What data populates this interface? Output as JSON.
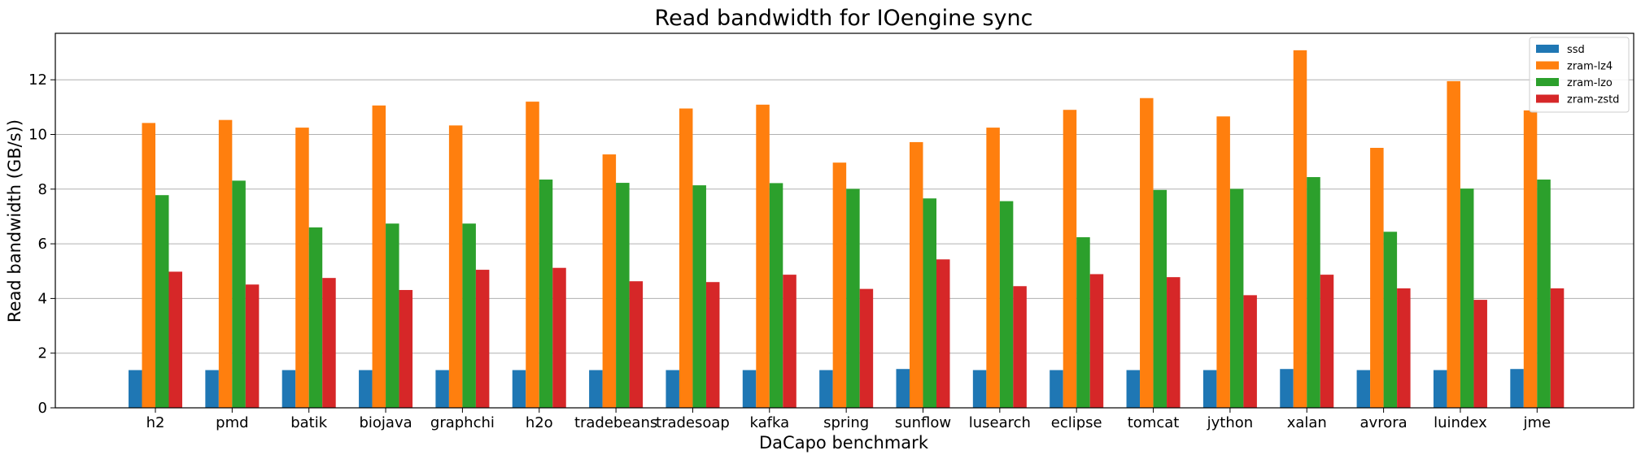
{
  "chart_data": {
    "type": "bar",
    "title": "Read bandwidth for IOengine sync",
    "xlabel": "DaCapo benchmark",
    "ylabel": "Read bandwidth (GB/s))",
    "ylim": [
      0,
      13.7
    ],
    "yticks": [
      0,
      2,
      4,
      6,
      8,
      10,
      12
    ],
    "grid": "horizontal",
    "legend_position": "top-right",
    "categories": [
      "h2",
      "pmd",
      "batik",
      "biojava",
      "graphchi",
      "h2o",
      "tradebeans",
      "tradesoap",
      "kafka",
      "spring",
      "sunflow",
      "lusearch",
      "eclipse",
      "tomcat",
      "jython",
      "xalan",
      "avrora",
      "luindex",
      "jme"
    ],
    "series": [
      {
        "name": "ssd",
        "color": "#1f77b4",
        "values": [
          1.38,
          1.38,
          1.38,
          1.38,
          1.38,
          1.38,
          1.38,
          1.38,
          1.38,
          1.38,
          1.42,
          1.38,
          1.38,
          1.38,
          1.38,
          1.42,
          1.38,
          1.38,
          1.42
        ]
      },
      {
        "name": "zram-lz4",
        "color": "#ff7f0e",
        "values": [
          10.42,
          10.53,
          10.25,
          11.06,
          10.33,
          11.2,
          9.27,
          10.95,
          11.09,
          8.97,
          9.72,
          10.25,
          10.9,
          11.33,
          10.66,
          13.08,
          9.51,
          11.95,
          10.88
        ]
      },
      {
        "name": "zram-lzo",
        "color": "#2ca02c",
        "values": [
          7.78,
          8.31,
          6.6,
          6.74,
          6.74,
          8.35,
          8.23,
          8.14,
          8.22,
          8.01,
          7.66,
          7.56,
          6.24,
          7.97,
          8.01,
          8.44,
          6.44,
          8.02,
          8.35
        ]
      },
      {
        "name": "zram-zstd",
        "color": "#d62728",
        "values": [
          4.98,
          4.51,
          4.75,
          4.31,
          5.05,
          5.12,
          4.63,
          4.6,
          4.87,
          4.35,
          5.43,
          4.45,
          4.89,
          4.78,
          4.12,
          4.87,
          4.37,
          3.95,
          4.37
        ]
      }
    ]
  }
}
